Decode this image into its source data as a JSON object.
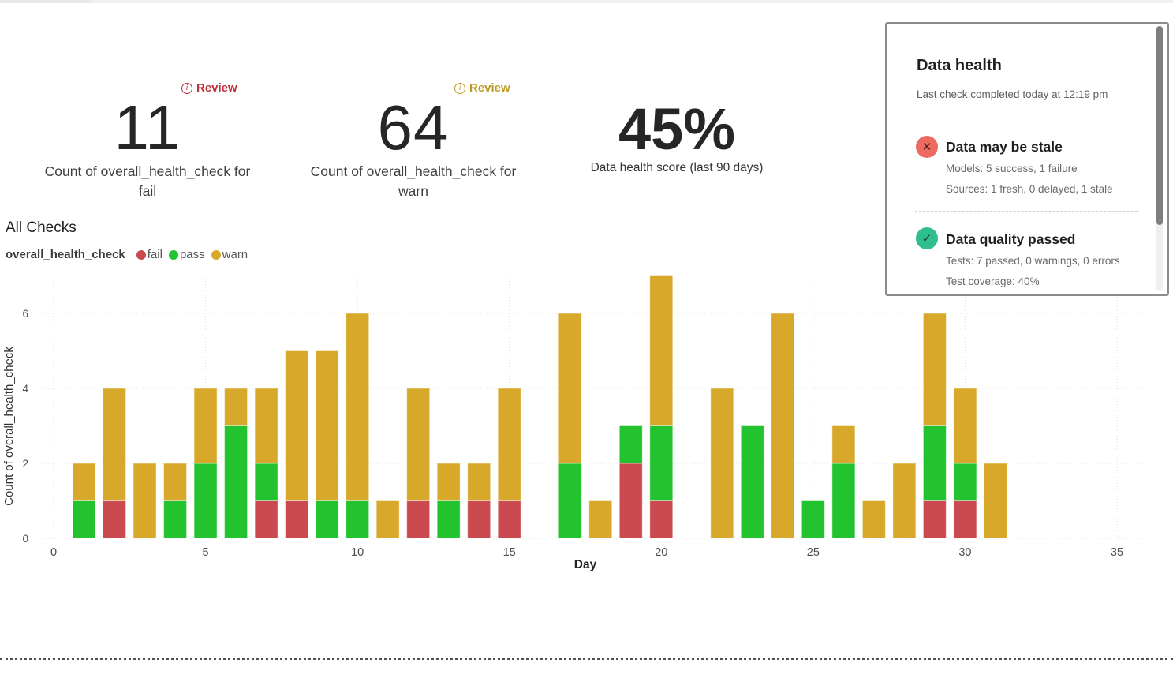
{
  "metrics": {
    "fail": {
      "review_label": "Review",
      "accent": "#c0303c",
      "value": "11",
      "caption": "Count of overall_health_check for fail"
    },
    "warn": {
      "review_label": "Review",
      "accent": "#bf9a27",
      "value": "64",
      "caption": "Count of overall_health_check for warn"
    },
    "score": {
      "value": "45%",
      "caption": "Data health score (last 90 days)"
    }
  },
  "section": {
    "title": "All Checks",
    "series_label": "overall_health_check",
    "legend": [
      {
        "label": "fail",
        "color": "#cb4a4f"
      },
      {
        "label": "pass",
        "color": "#22c32e"
      },
      {
        "label": "warn",
        "color": "#d8a82b"
      }
    ]
  },
  "chart_data": {
    "type": "bar",
    "stacked": true,
    "title": "All Checks",
    "xlabel": "Day",
    "ylabel": "Count of overall_health_check",
    "xlim": [
      0,
      35
    ],
    "ylim": [
      0,
      7
    ],
    "xticks": [
      0,
      5,
      10,
      15,
      20,
      25,
      30,
      35
    ],
    "yticks": [
      0,
      2,
      4,
      6
    ],
    "grid": "dotted",
    "stack_order": [
      "fail",
      "pass",
      "warn"
    ],
    "colors": {
      "fail": "#cb4a4f",
      "pass": "#22c32e",
      "warn": "#d8a82b"
    },
    "totals": {
      "fail": 11,
      "pass": 25,
      "warn": 64
    },
    "bars": [
      {
        "day": 1,
        "fail": 0,
        "pass": 1,
        "warn": 1
      },
      {
        "day": 2,
        "fail": 1,
        "pass": 0,
        "warn": 3
      },
      {
        "day": 3,
        "fail": 0,
        "pass": 0,
        "warn": 2
      },
      {
        "day": 4,
        "fail": 0,
        "pass": 1,
        "warn": 1
      },
      {
        "day": 5,
        "fail": 0,
        "pass": 2,
        "warn": 2
      },
      {
        "day": 6,
        "fail": 0,
        "pass": 3,
        "warn": 1
      },
      {
        "day": 7,
        "fail": 1,
        "pass": 1,
        "warn": 2
      },
      {
        "day": 8,
        "fail": 1,
        "pass": 0,
        "warn": 4
      },
      {
        "day": 9,
        "fail": 0,
        "pass": 1,
        "warn": 4
      },
      {
        "day": 10,
        "fail": 0,
        "pass": 1,
        "warn": 5
      },
      {
        "day": 11,
        "fail": 0,
        "pass": 0,
        "warn": 1
      },
      {
        "day": 12,
        "fail": 1,
        "pass": 0,
        "warn": 3
      },
      {
        "day": 13,
        "fail": 0,
        "pass": 1,
        "warn": 1
      },
      {
        "day": 14,
        "fail": 1,
        "pass": 0,
        "warn": 1
      },
      {
        "day": 15,
        "fail": 1,
        "pass": 0,
        "warn": 3
      },
      {
        "day": 16,
        "fail": 0,
        "pass": 0,
        "warn": 0
      },
      {
        "day": 17,
        "fail": 0,
        "pass": 2,
        "warn": 4
      },
      {
        "day": 18,
        "fail": 0,
        "pass": 0,
        "warn": 1
      },
      {
        "day": 19,
        "fail": 2,
        "pass": 1,
        "warn": 0
      },
      {
        "day": 20,
        "fail": 1,
        "pass": 2,
        "warn": 4
      },
      {
        "day": 21,
        "fail": 0,
        "pass": 0,
        "warn": 0
      },
      {
        "day": 22,
        "fail": 0,
        "pass": 0,
        "warn": 4
      },
      {
        "day": 23,
        "fail": 0,
        "pass": 3,
        "warn": 0
      },
      {
        "day": 24,
        "fail": 0,
        "pass": 0,
        "warn": 6
      },
      {
        "day": 25,
        "fail": 0,
        "pass": 1,
        "warn": 0
      },
      {
        "day": 26,
        "fail": 0,
        "pass": 2,
        "warn": 1
      },
      {
        "day": 27,
        "fail": 0,
        "pass": 0,
        "warn": 1
      },
      {
        "day": 28,
        "fail": 0,
        "pass": 0,
        "warn": 2
      },
      {
        "day": 29,
        "fail": 1,
        "pass": 2,
        "warn": 3
      },
      {
        "day": 30,
        "fail": 1,
        "pass": 1,
        "warn": 2
      },
      {
        "day": 31,
        "fail": 0,
        "pass": 0,
        "warn": 2
      }
    ]
  },
  "health_panel": {
    "title": "Data health",
    "subtitle": "Last check completed today at 12:19 pm",
    "items": [
      {
        "icon": "x-circle-icon",
        "icon_glyph": "✕",
        "icon_color": "#ee6a60",
        "title": "Data may be stale",
        "lines": [
          "Models: 5 success, 1 failure",
          "Sources: 1 fresh, 0 delayed, 1 stale"
        ]
      },
      {
        "icon": "check-circle-icon",
        "icon_glyph": "✓",
        "icon_color": "#2fbe8c",
        "title": "Data quality passed",
        "lines": [
          "Tests: 7 passed, 0 warnings, 0 errors",
          "Test coverage: 40%"
        ]
      }
    ]
  }
}
